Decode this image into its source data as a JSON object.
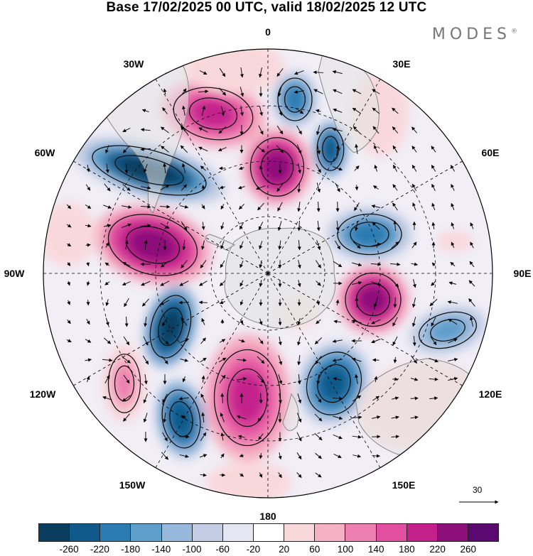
{
  "header": {
    "title": "Base 17/02/2025 00 UTC, valid 18/02/2025 12 UTC",
    "brand": "MODES"
  },
  "map": {
    "projection": "south polar stereographic",
    "longitude_labels": {
      "top": "0",
      "top_right": "30E",
      "right_upper": "60E",
      "right": "90E",
      "right_lower": "120E",
      "bottom_right": "150E",
      "bottom": "180",
      "bottom_left": "150W",
      "left_lower": "120W",
      "left": "90W",
      "left_upper": "60W",
      "top_left": "30W"
    },
    "reference_vector": {
      "value": "30"
    },
    "colors": {
      "land": "#e4e4e4",
      "coast": "#888888",
      "grid": "#000000"
    }
  },
  "colorbar": {
    "colors": [
      "#0b3d5e",
      "#0f5a8a",
      "#2b7cb3",
      "#5d9ecb",
      "#96b8da",
      "#c2cde4",
      "#e6e6f2",
      "#ffffff",
      "#f9d8dc",
      "#f4b2c4",
      "#ee80b1",
      "#e24ea0",
      "#c3208c",
      "#8c0f7a",
      "#5a0970"
    ],
    "tick_labels": [
      "-260",
      "-220",
      "-180",
      "-140",
      "-100",
      "-60",
      "-20",
      "20",
      "60",
      "100",
      "140",
      "180",
      "220",
      "260"
    ]
  }
}
